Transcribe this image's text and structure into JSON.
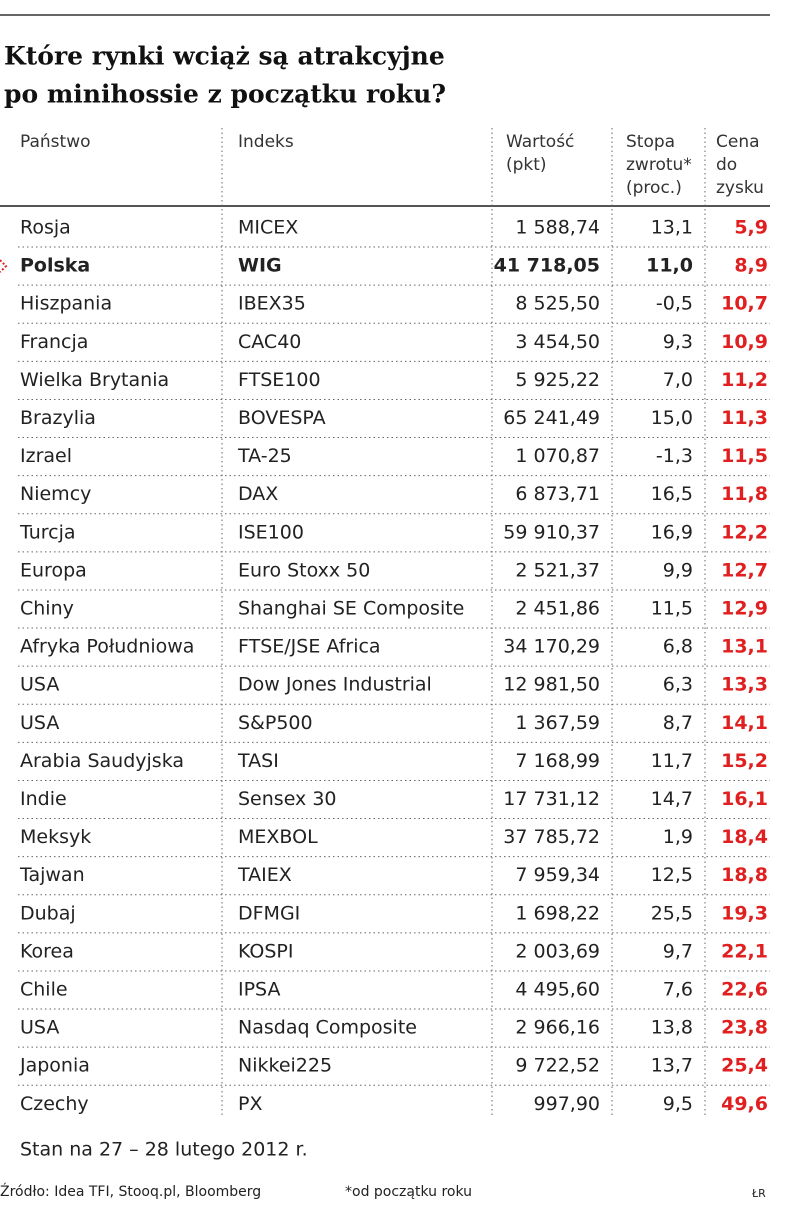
{
  "title": [
    "Które rynki wciąż są atrakcyjne",
    "po minihossie z początku roku?"
  ],
  "header": [
    [
      "Państwo"
    ],
    [
      "Indeks"
    ],
    [
      "Wartość",
      "(pkt)"
    ],
    [
      "Stopa",
      "zwrotu*",
      "(proc.)"
    ],
    [
      "Cena",
      "do",
      "zysku"
    ]
  ],
  "rows": [
    [
      "Rosja",
      "MICEX",
      "1 588,74",
      "13,1",
      "5,9"
    ],
    [
      "Polska",
      "WIG",
      "41 718,05",
      "11,0",
      "8,9"
    ],
    [
      "Hiszpania",
      "IBEX35",
      "8 525,50",
      "-0,5",
      "10,7"
    ],
    [
      "Francja",
      "CAC40",
      "3 454,50",
      "9,3",
      "10,9"
    ],
    [
      "Wielka Brytania",
      "FTSE100",
      "5 925,22",
      "7,0",
      "11,2"
    ],
    [
      "Brazylia",
      "BOVESPA",
      "65 241,49",
      "15,0",
      "11,3"
    ],
    [
      "Izrael",
      "TA-25",
      "1 070,87",
      "-1,3",
      "11,5"
    ],
    [
      "Niemcy",
      "DAX",
      "6 873,71",
      "16,5",
      "11,8"
    ],
    [
      "Turcja",
      "ISE100",
      "59 910,37",
      "16,9",
      "12,2"
    ],
    [
      "Europa",
      "Euro Stoxx 50",
      "2 521,37",
      "9,9",
      "12,7"
    ],
    [
      "Chiny",
      "Shanghai SE Composite",
      "2 451,86",
      "11,5",
      "12,9"
    ],
    [
      "Afryka Południowa",
      "FTSE/JSE Africa",
      "34 170,29",
      "6,8",
      "13,1"
    ],
    [
      "USA",
      "Dow Jones Industrial",
      "12 981,50",
      "6,3",
      "13,3"
    ],
    [
      "USA",
      "S&P500",
      "1 367,59",
      "8,7",
      "14,1"
    ],
    [
      "Arabia Saudyjska",
      "TASI",
      "7 168,99",
      "11,7",
      "15,2"
    ],
    [
      "Indie",
      "Sensex 30",
      "17 731,12",
      "14,7",
      "16,1"
    ],
    [
      "Meksyk",
      "MEXBOL",
      "37 785,72",
      "1,9",
      "18,4"
    ],
    [
      "Tajwan",
      "TAIEX",
      "7 959,34",
      "12,5",
      "18,8"
    ],
    [
      "Dubaj",
      "DFMGI",
      "1 698,22",
      "25,5",
      "19,3"
    ],
    [
      "Korea",
      "KOSPI",
      "2 003,69",
      "9,7",
      "22,1"
    ],
    [
      "Chile",
      "IPSA",
      "4 495,60",
      "7,6",
      "22,6"
    ],
    [
      "USA",
      "Nasdaq Composite",
      "2 966,16",
      "13,8",
      "23,8"
    ],
    [
      "Japonia",
      "Nikkei225",
      "9 722,52",
      "13,7",
      "25,4"
    ],
    [
      "Czechy",
      "PX",
      "997,90",
      "9,5",
      "49,6"
    ]
  ],
  "highlight_row": 1,
  "date_note": "Stan na 27 – 28 lutego 2012 r.",
  "source": "Źródło: Idea TFI, Stooq.pl, Bloomberg",
  "footnote": "*od początku roku",
  "credit": "ŁR"
}
